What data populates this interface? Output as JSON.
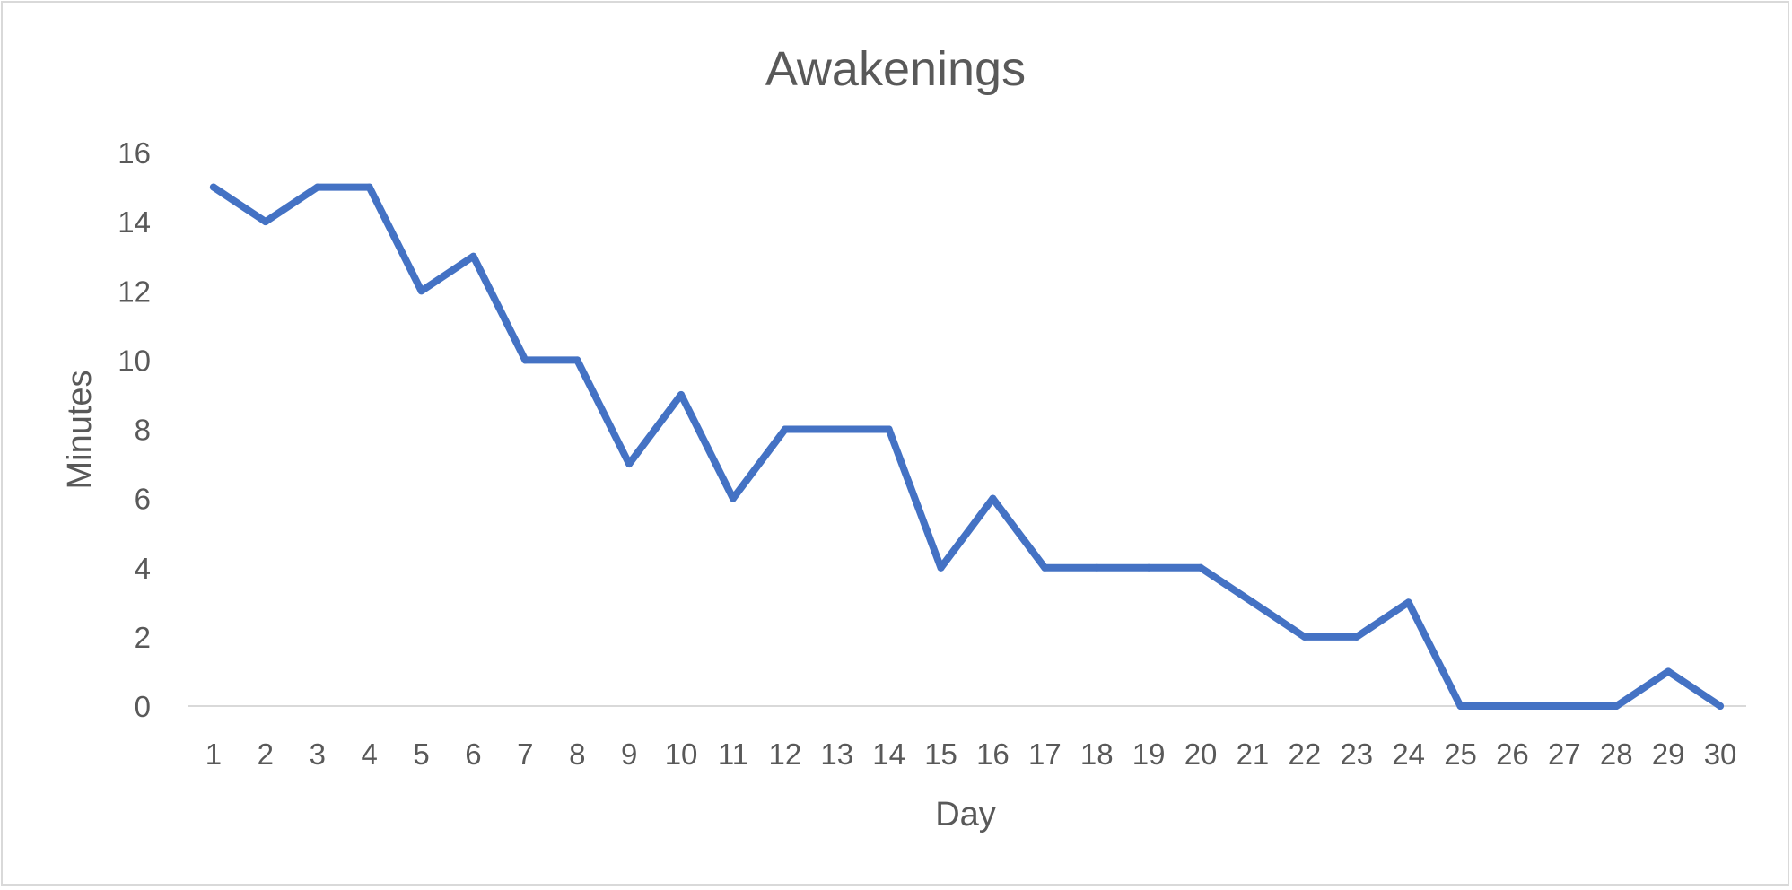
{
  "chart_data": {
    "type": "line",
    "title": "Awakenings",
    "xlabel": "Day",
    "ylabel": "Minutes",
    "categories": [
      "1",
      "2",
      "3",
      "4",
      "5",
      "6",
      "7",
      "8",
      "9",
      "10",
      "11",
      "12",
      "13",
      "14",
      "15",
      "16",
      "17",
      "18",
      "19",
      "20",
      "21",
      "22",
      "23",
      "24",
      "25",
      "26",
      "27",
      "28",
      "29",
      "30"
    ],
    "series": [
      {
        "values": [
          15,
          14,
          15,
          15,
          12,
          13,
          10,
          10,
          7,
          9,
          6,
          8,
          8,
          8,
          4,
          6,
          4,
          4,
          4,
          4,
          3,
          2,
          2,
          3,
          0,
          0,
          0,
          0,
          1,
          0
        ]
      }
    ],
    "ylim": [
      0,
      16
    ],
    "yticks": [
      "0",
      "2",
      "4",
      "6",
      "8",
      "10",
      "12",
      "14",
      "16"
    ],
    "grid": false,
    "legend": "none",
    "colors": {
      "line": "#4472C4",
      "axis": "#d9d9d9",
      "text": "#595959",
      "border": "#d9d9d9"
    }
  }
}
